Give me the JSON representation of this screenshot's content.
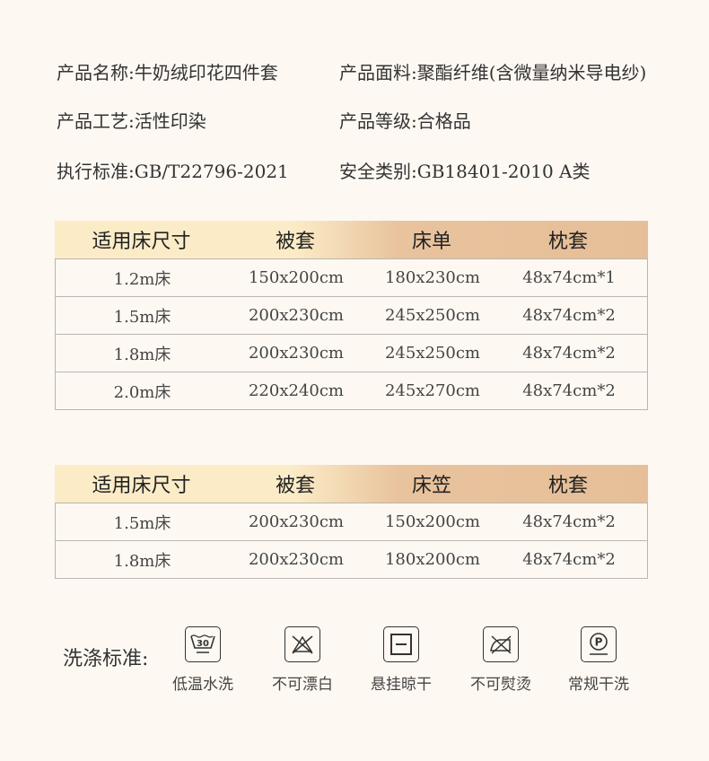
{
  "info": [
    {
      "label": "产品名称:",
      "value": "牛奶绒印花四件套"
    },
    {
      "label": "产品面料:",
      "value": "聚酯纤维(含微量纳米导电纱)"
    },
    {
      "label": "产品工艺:",
      "value": "活性印染"
    },
    {
      "label": "产品等级:",
      "value": "合格品"
    },
    {
      "label": "执行标准:",
      "value": "GB/T22796-2021"
    },
    {
      "label": "安全类别:",
      "value": "GB18401-2010 A类"
    }
  ],
  "table1": {
    "headers": [
      "适用床尺寸",
      "被套",
      "床单",
      "枕套"
    ],
    "rows": [
      [
        "1.2m床",
        "150x200cm",
        "180x230cm",
        "48x74cm*1"
      ],
      [
        "1.5m床",
        "200x230cm",
        "245x250cm",
        "48x74cm*2"
      ],
      [
        "1.8m床",
        "200x230cm",
        "245x250cm",
        "48x74cm*2"
      ],
      [
        "2.0m床",
        "220x240cm",
        "245x270cm",
        "48x74cm*2"
      ]
    ]
  },
  "table2": {
    "headers": [
      "适用床尺寸",
      "被套",
      "床笠",
      "枕套"
    ],
    "rows": [
      [
        "1.5m床",
        "200x230cm",
        "150x200cm",
        "48x74cm*2"
      ],
      [
        "1.8m床",
        "200x230cm",
        "180x200cm",
        "48x74cm*2"
      ]
    ]
  },
  "care": {
    "label": "洗涤标准:",
    "items": [
      {
        "icon": "wash-30-icon",
        "label": "低温水洗",
        "temp": "30"
      },
      {
        "icon": "no-bleach-icon",
        "label": "不可漂白"
      },
      {
        "icon": "hang-dry-icon",
        "label": "悬挂晾干"
      },
      {
        "icon": "no-iron-icon",
        "label": "不可熨烫"
      },
      {
        "icon": "dry-clean-p-icon",
        "label": "常规干洗",
        "letter": "P"
      }
    ]
  }
}
